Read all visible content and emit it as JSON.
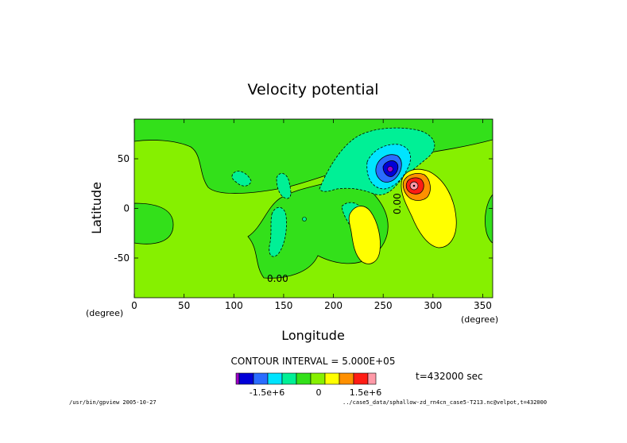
{
  "chart_data": {
    "type": "heatmap",
    "title": "Velocity potential",
    "xlabel": "Longitude",
    "ylabel": "Latitude",
    "x_unit": "(degree)",
    "y_unit": "(degree)",
    "xlim": [
      0,
      360
    ],
    "ylim": [
      -90,
      90
    ],
    "x_ticks": [
      0,
      50,
      100,
      150,
      200,
      250,
      300,
      350
    ],
    "y_ticks": [
      50,
      0,
      -50
    ],
    "contour_labels": [
      "0.00",
      "0.00"
    ],
    "contour_interval_text": "CONTOUR INTERVAL = 5.000E+05",
    "time_text": "t=432000 sec",
    "colorbar": {
      "colors": [
        "#9b00c8",
        "#0000d8",
        "#2a6cff",
        "#00e4ff",
        "#00f096",
        "#33e01a",
        "#86f000",
        "#ffff00",
        "#ff9000",
        "#ff1c14",
        "#ff9aa8"
      ],
      "tick_labels": [
        "-1.5e+6",
        "0",
        "1.5e+6"
      ]
    },
    "footer_left": "/usr/bin/gpview  2005-10-27",
    "footer_right": "../case5_data/sphallow-zd_rn4cn_case5-T213.nc@velpot,t=432000"
  }
}
